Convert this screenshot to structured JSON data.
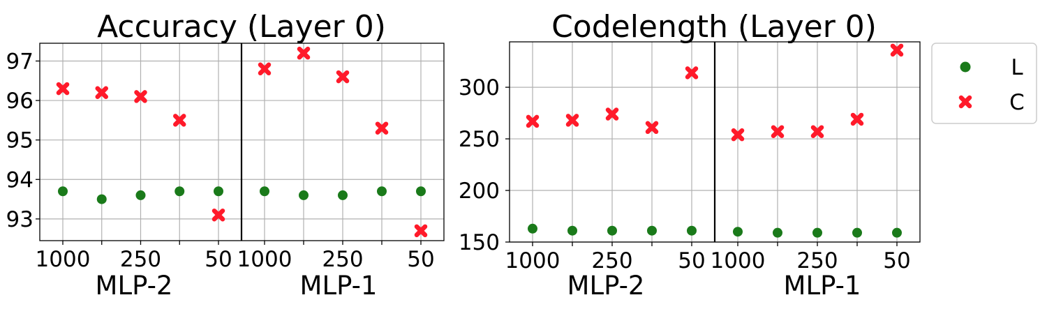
{
  "colors": {
    "L": "#1a7a1a",
    "C": "#ff1a2a",
    "grid": "#b0b0b0",
    "axis": "#000000"
  },
  "legend": {
    "placement": "right",
    "items": [
      {
        "label": "L",
        "color": "#1a7a1a",
        "marker": "circle"
      },
      {
        "label": "C",
        "color": "#ff1a2a",
        "marker": "x"
      }
    ]
  },
  "chart_data": [
    {
      "type": "scatter",
      "title": "Accuracy (Layer 0)",
      "ylim": [
        92.45,
        97.45
      ],
      "yticks": [
        "93",
        "94",
        "95",
        "96",
        "97"
      ],
      "grid": true,
      "groups": [
        {
          "label": "MLP-2",
          "x_positions": [
            0,
            1,
            2,
            3,
            4
          ],
          "xtick_labels": [
            "1000",
            "",
            "250",
            "",
            "50"
          ],
          "series": [
            {
              "name": "L",
              "values": [
                93.7,
                93.5,
                93.6,
                93.7,
                93.7
              ]
            },
            {
              "name": "C",
              "values": [
                96.3,
                96.2,
                96.1,
                95.5,
                93.1
              ]
            }
          ]
        },
        {
          "label": "MLP-1",
          "x_positions": [
            0,
            1,
            2,
            3,
            4
          ],
          "xtick_labels": [
            "1000",
            "",
            "250",
            "",
            "50"
          ],
          "series": [
            {
              "name": "L",
              "values": [
                93.7,
                93.6,
                93.6,
                93.7,
                93.7
              ]
            },
            {
              "name": "C",
              "values": [
                96.8,
                97.2,
                96.6,
                95.3,
                92.7
              ]
            }
          ]
        }
      ]
    },
    {
      "type": "scatter",
      "title": "Codelength (Layer 0)",
      "ylim": [
        150,
        344
      ],
      "yticks": [
        "150",
        "200",
        "250",
        "300"
      ],
      "grid": true,
      "groups": [
        {
          "label": "MLP-2",
          "x_positions": [
            0,
            1,
            2,
            3,
            4
          ],
          "xtick_labels": [
            "1000",
            "",
            "250",
            "",
            "50"
          ],
          "series": [
            {
              "name": "L",
              "values": [
                163,
                161,
                161,
                161,
                161
              ]
            },
            {
              "name": "C",
              "values": [
                267,
                268,
                274,
                261,
                314
              ]
            }
          ]
        },
        {
          "label": "MLP-1",
          "x_positions": [
            0,
            1,
            2,
            3,
            4
          ],
          "xtick_labels": [
            "1000",
            "",
            "250",
            "",
            "50"
          ],
          "series": [
            {
              "name": "L",
              "values": [
                160,
                159,
                159,
                159,
                159
              ]
            },
            {
              "name": "C",
              "values": [
                254,
                257,
                257,
                269,
                336
              ]
            }
          ]
        }
      ]
    }
  ]
}
